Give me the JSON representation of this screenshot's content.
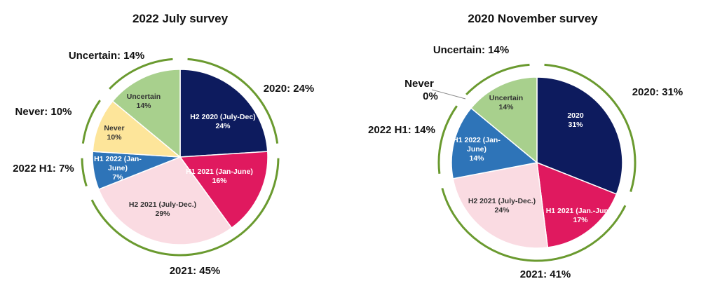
{
  "chart_data": [
    {
      "type": "pie",
      "title": "2022 July survey",
      "slices": [
        {
          "label": "H2 2020 (July-Dec)",
          "value": 24,
          "value_label": "24%",
          "color": "#0d1b5e",
          "text_color": "#ffffff"
        },
        {
          "label": "H1 2021 (Jan-June)",
          "value": 16,
          "value_label": "16%",
          "color": "#e0195f",
          "text_color": "#ffffff"
        },
        {
          "label": "H2 2021 (July-Dec.)",
          "value": 29,
          "value_label": "29%",
          "color": "#fadbe2",
          "text_color": "#333333"
        },
        {
          "label": "H1 2022 (Jan-June)",
          "value": 7,
          "value_label": "7%",
          "color": "#2e74b8",
          "text_color": "#ffffff"
        },
        {
          "label": "Never",
          "value": 10,
          "value_label": "10%",
          "color": "#fde59a",
          "text_color": "#333333"
        },
        {
          "label": "Uncertain",
          "value": 14,
          "value_label": "14%",
          "color": "#a8d08d",
          "text_color": "#333333"
        }
      ],
      "group_labels": [
        {
          "text": "2020: 24%",
          "start": 0,
          "end": 24
        },
        {
          "text": "2021: 45%",
          "start": 24,
          "end": 69
        },
        {
          "text": "2022 H1: 7%",
          "start": 69,
          "end": 76
        },
        {
          "text": "Never: 10%",
          "start": 76,
          "end": 86
        },
        {
          "text": "Uncertain: 14%",
          "start": 86,
          "end": 100
        }
      ]
    },
    {
      "type": "pie",
      "title": "2020 November survey",
      "slices": [
        {
          "label": "2020",
          "value": 31,
          "value_label": "31%",
          "color": "#0d1b5e",
          "text_color": "#ffffff"
        },
        {
          "label": "H1 2021 (Jan.-June)",
          "value": 17,
          "value_label": "17%",
          "color": "#e0195f",
          "text_color": "#ffffff"
        },
        {
          "label": "H2 2021 (July-Dec.)",
          "value": 24,
          "value_label": "24%",
          "color": "#fadbe2",
          "text_color": "#333333"
        },
        {
          "label": "H1 2022 (Jan-June)",
          "value": 14,
          "value_label": "14%",
          "color": "#2e74b8",
          "text_color": "#ffffff"
        },
        {
          "label": "Never",
          "value": 0,
          "value_label": "0%",
          "color": "#fde59a",
          "text_color": "#333333"
        },
        {
          "label": "Uncertain",
          "value": 14,
          "value_label": "14%",
          "color": "#a8d08d",
          "text_color": "#333333"
        }
      ],
      "group_labels": [
        {
          "text": "2020: 31%",
          "start": 0,
          "end": 31
        },
        {
          "text": "2021: 41%",
          "start": 31,
          "end": 72
        },
        {
          "text": "2022 H1: 14%",
          "start": 72,
          "end": 86
        },
        {
          "text": "Never 0%",
          "start": 86,
          "end": 86
        },
        {
          "text": "Uncertain: 14%",
          "start": 86,
          "end": 100
        }
      ]
    }
  ],
  "colors": {
    "ring": "#6a9a2f",
    "leader": "#888888"
  }
}
